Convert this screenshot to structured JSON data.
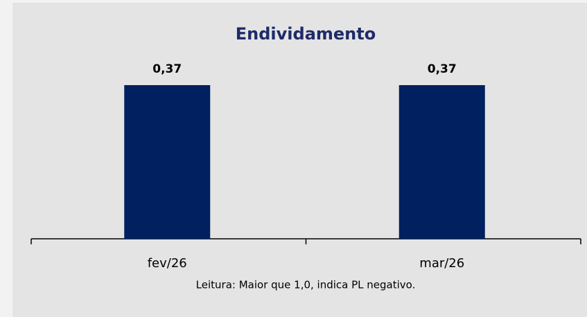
{
  "chart_data": {
    "type": "bar",
    "title": "Endividamento",
    "categories": [
      "fev/26",
      "mar/26"
    ],
    "values": [
      0.37,
      0.37
    ],
    "value_labels": [
      "0,37",
      "0,37"
    ],
    "color": "#002060",
    "note": "Leitura: Maior que 1,0, indica PL negativo."
  }
}
